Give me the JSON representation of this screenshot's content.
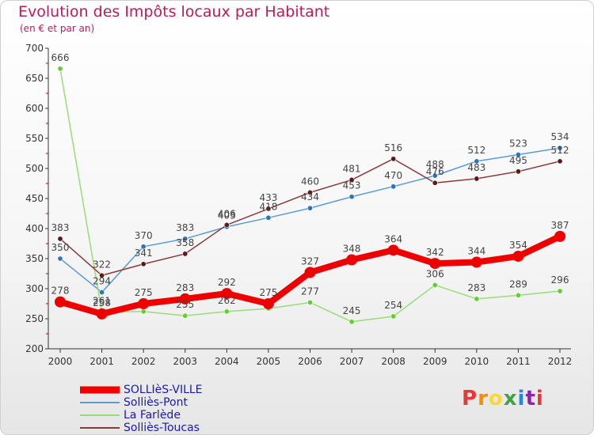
{
  "header": {
    "title": "Evolution des Impôts locaux par Habitant",
    "subtitle": "(en € et par an)"
  },
  "logo": {
    "text": "Proxiti",
    "letters": [
      {
        "char": "P",
        "color": "#e53935"
      },
      {
        "char": "r",
        "color": "#fb8c00"
      },
      {
        "char": "o",
        "color": "#fdd835"
      },
      {
        "char": "x",
        "color": "#43a047"
      },
      {
        "char": "i",
        "color": "#1e88e5"
      },
      {
        "char": "t",
        "color": "#8e24aa"
      },
      {
        "char": "i",
        "color": "#e53935"
      }
    ]
  },
  "chart_data": {
    "type": "line",
    "title": "Evolution des Impôts locaux par Habitant",
    "subtitle": "(en € et par an)",
    "xlabel": "",
    "ylabel": "",
    "x": [
      "2000",
      "2001",
      "2002",
      "2003",
      "2004",
      "2005",
      "2006",
      "2007",
      "2008",
      "2009",
      "2010",
      "2011",
      "2012"
    ],
    "ylim": [
      200,
      700
    ],
    "yticks": [
      200,
      250,
      300,
      350,
      400,
      450,
      500,
      550,
      600,
      650,
      700
    ],
    "grid": false,
    "legend_position": "bottom-left",
    "series": [
      {
        "name": "Solliès-Pont",
        "color": "#5b9bd5",
        "dot_color": "#2e75b6",
        "values": [
          350,
          294,
          370,
          383,
          403,
          418,
          434,
          453,
          470,
          488,
          512,
          523,
          534
        ],
        "labels": [
          "350",
          "294",
          "370",
          "383",
          "403",
          "418",
          "434",
          "453",
          "470",
          "488",
          "512",
          "523",
          "534"
        ]
      },
      {
        "name": "La Farlède",
        "color": "#99dd77",
        "dot_color": "#66cc33",
        "values": [
          666,
          261,
          262,
          255,
          262,
          267,
          277,
          245,
          254,
          306,
          283,
          289,
          296
        ],
        "labels": [
          "666",
          "261",
          "",
          "255",
          "262",
          "",
          "277",
          "245",
          "254",
          "306",
          "283",
          "289",
          "296"
        ]
      },
      {
        "name": "Solliès-Toucas",
        "color": "#8b3a3a",
        "dot_color": "#5a1a1a",
        "values": [
          383,
          322,
          341,
          358,
          406,
          433,
          460,
          481,
          516,
          476,
          483,
          495,
          512
        ],
        "labels": [
          "383",
          "322",
          "341",
          "358",
          "406",
          "433",
          "460",
          "481",
          "516",
          "476",
          "483",
          "495",
          "512"
        ]
      },
      {
        "name": "SOLLIèS-VILLE",
        "color": "#ee0000",
        "dot_color": "#ee0000",
        "values": [
          278,
          258,
          275,
          283,
          292,
          275,
          327,
          348,
          364,
          342,
          344,
          354,
          387
        ],
        "labels": [
          "278",
          "258",
          "275",
          "283",
          "292",
          "275",
          "327",
          "348",
          "364",
          "342",
          "344",
          "354",
          "387"
        ]
      }
    ],
    "legend_entries": [
      {
        "name": "SOLLIèS-VILLE",
        "color": "#ee0000",
        "thick": true
      },
      {
        "name": "Solliès-Pont",
        "color": "#5b9bd5",
        "thick": false
      },
      {
        "name": "La Farlède",
        "color": "#99dd77",
        "thick": false
      },
      {
        "name": "Solliès-Toucas",
        "color": "#8b3a3a",
        "thick": false
      }
    ]
  }
}
